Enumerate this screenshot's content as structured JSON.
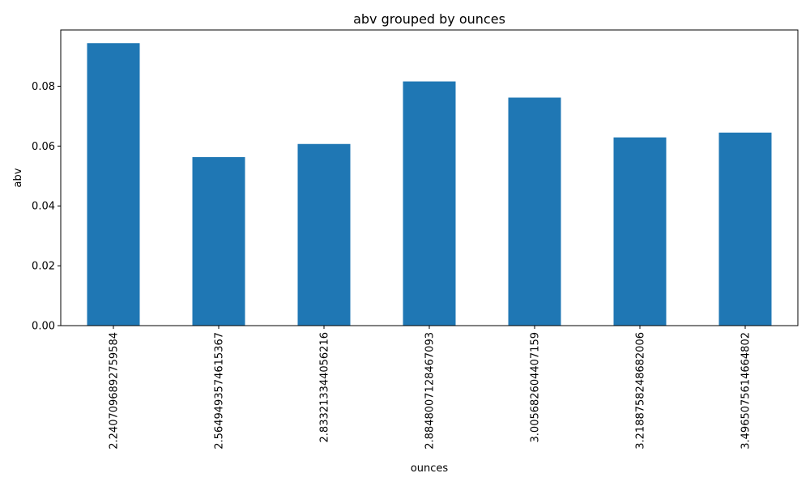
{
  "chart_data": {
    "type": "bar",
    "title": "abv grouped by ounces",
    "xlabel": "ounces",
    "ylabel": "abv",
    "categories": [
      "2.2407096892759584",
      "2.5649493574615367",
      "2.833213344056216",
      "2.8848007128467093",
      "3.005682604407159",
      "3.2188758248682006",
      "3.4965075614664802"
    ],
    "values": [
      0.0944,
      0.0563,
      0.0607,
      0.0816,
      0.0762,
      0.0629,
      0.0645
    ],
    "ylim": [
      0,
      0.0988
    ],
    "yticks": [
      0.0,
      0.02,
      0.04,
      0.06,
      0.08
    ],
    "ytick_labels": [
      "0.00",
      "0.02",
      "0.04",
      "0.06",
      "0.08"
    ],
    "bar_color": "#1f77b4",
    "grid": false,
    "legend": false
  }
}
